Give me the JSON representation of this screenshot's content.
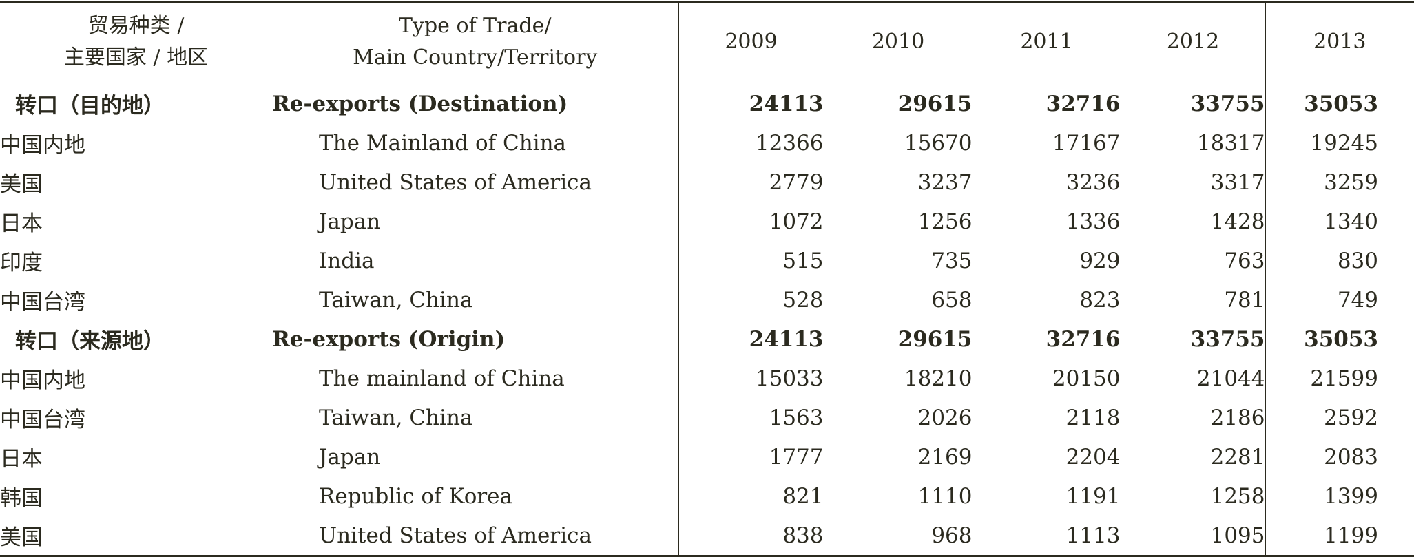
{
  "header": {
    "cn_col": [
      "贸易种类 /",
      "主要国家 / 地区"
    ],
    "en_col": [
      "Type of Trade/",
      "Main Country/Territory"
    ],
    "years": [
      "2009",
      "2010",
      "2011",
      "2012",
      "2013"
    ]
  },
  "rows": [
    {
      "cn": "转口（目的地）",
      "en": "Re-exports (Destination)",
      "values": [
        "24113",
        "29615",
        "32716",
        "33755",
        "35053"
      ],
      "bold": true
    },
    {
      "cn": "中国内地",
      "en": "The Mainland of China",
      "values": [
        "12366",
        "15670",
        "17167",
        "18317",
        "19245"
      ],
      "bold": false
    },
    {
      "cn": "美国",
      "en": "United States of America",
      "values": [
        "2779",
        "3237",
        "3236",
        "3317",
        "3259"
      ],
      "bold": false
    },
    {
      "cn": "日本",
      "en": "Japan",
      "values": [
        "1072",
        "1256",
        "1336",
        "1428",
        "1340"
      ],
      "bold": false
    },
    {
      "cn": "印度",
      "en": "India",
      "values": [
        "515",
        "735",
        "929",
        "763",
        "830"
      ],
      "bold": false
    },
    {
      "cn": "中国台湾",
      "en": "Taiwan, China",
      "values": [
        "528",
        "658",
        "823",
        "781",
        "749"
      ],
      "bold": false
    },
    {
      "cn": "转口（来源地）",
      "en": "Re-exports (Origin)",
      "values": [
        "24113",
        "29615",
        "32716",
        "33755",
        "35053"
      ],
      "bold": true
    },
    {
      "cn": "中国内地",
      "en": "The mainland of China",
      "values": [
        "15033",
        "18210",
        "20150",
        "21044",
        "21599"
      ],
      "bold": false
    },
    {
      "cn": "中国台湾",
      "en": "Taiwan, China",
      "values": [
        "1563",
        "2026",
        "2118",
        "2186",
        "2592"
      ],
      "bold": false
    },
    {
      "cn": "日本",
      "en": "Japan",
      "values": [
        "1777",
        "2169",
        "2204",
        "2281",
        "2083"
      ],
      "bold": false
    },
    {
      "cn": "韩国",
      "en": "Republic of Korea",
      "values": [
        "821",
        "1110",
        "1191",
        "1258",
        "1399"
      ],
      "bold": false
    },
    {
      "cn": "美国",
      "en": "United States of America",
      "values": [
        "838",
        "968",
        "1113",
        "1095",
        "1199"
      ],
      "bold": false
    }
  ]
}
